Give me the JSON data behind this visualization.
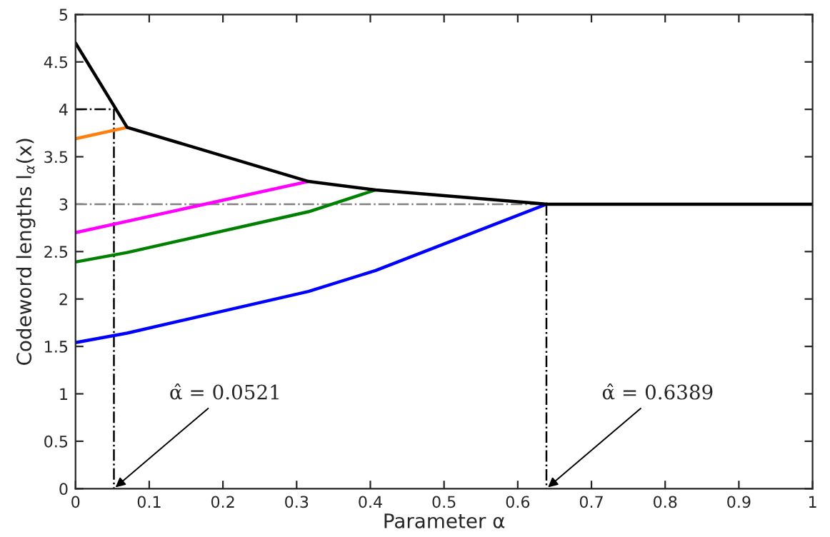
{
  "chart_data": {
    "type": "line",
    "xlabel": "Parameter α",
    "ylabel": "Codeword lengths l$_{α}$(x)",
    "xlim": [
      0,
      1
    ],
    "ylim": [
      0,
      5
    ],
    "xticks": [
      0,
      0.1,
      0.2,
      0.3,
      0.4,
      0.5,
      0.6,
      0.7,
      0.8,
      0.9,
      1
    ],
    "yticks": [
      0,
      0.5,
      1,
      1.5,
      2,
      2.5,
      3,
      3.5,
      4,
      4.5,
      5
    ],
    "grid": false,
    "legend": false,
    "marker": "none",
    "series": [
      {
        "color": "#808080",
        "x": [
          0,
          0.6389
        ],
        "values": [
          3,
          3
        ],
        "line_style": "dashed"
      },
      {
        "color": "#000000",
        "x": [
          0,
          0.0521,
          0.0521
        ],
        "values": [
          4,
          4,
          0
        ],
        "line_style": "dashed"
      },
      {
        "color": "#000000",
        "x": [
          0.6389,
          0.6389
        ],
        "values": [
          3,
          0
        ],
        "line_style": "dashed"
      },
      {
        "color": "#ff7f0e",
        "x": [
          0,
          0.07
        ],
        "values": [
          3.69,
          3.81
        ],
        "line_style": "solid"
      },
      {
        "color": "#ff00ff",
        "x": [
          0,
          0.316
        ],
        "values": [
          2.7,
          3.24
        ],
        "line_style": "solid"
      },
      {
        "color": "#008000",
        "x": [
          0,
          0.07,
          0.316,
          0.407
        ],
        "values": [
          2.39,
          2.49,
          2.92,
          3.15
        ],
        "line_style": "solid"
      },
      {
        "color": "#0000ff",
        "x": [
          0,
          0.07,
          0.316,
          0.407,
          0.6389
        ],
        "values": [
          1.54,
          1.64,
          2.08,
          2.3,
          3.0
        ],
        "line_style": "solid"
      },
      {
        "color": "#000000",
        "x": [
          0,
          0.07,
          0.316,
          0.407,
          0.6389,
          1
        ],
        "values": [
          4.7,
          3.81,
          3.24,
          3.15,
          3.0,
          3.0
        ],
        "line_style": "solid"
      }
    ],
    "annotations": [
      {
        "text": "α̂ = 0.0521",
        "x": 0.0521,
        "y": 0
      },
      {
        "text": "α̂ = 0.6389",
        "x": 0.6389,
        "y": 0
      }
    ]
  }
}
